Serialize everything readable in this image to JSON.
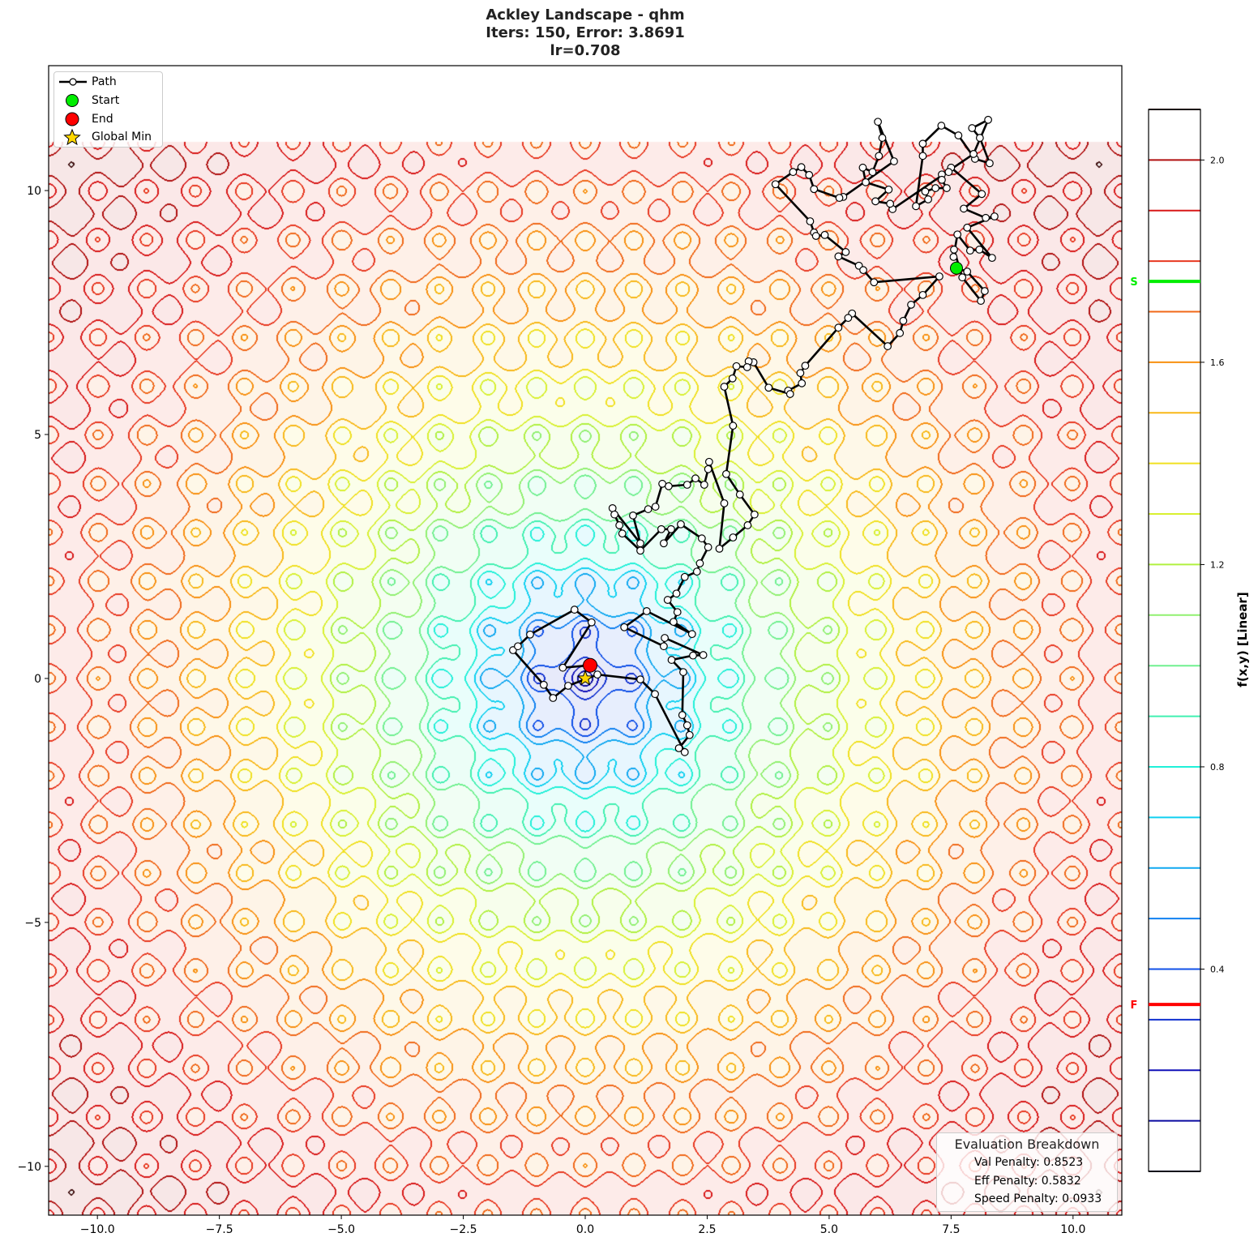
{
  "title": {
    "line1": "Ackley Landscape - qhm",
    "line2": "Iters: 150, Error: 3.8691",
    "line3": "lr=0.708"
  },
  "legend": {
    "path": "Path",
    "start": "Start",
    "end": "End",
    "global_min": "Global Min"
  },
  "evaluation": {
    "title": "Evaluation Breakdown",
    "val_penalty": "Val Penalty: 0.8523",
    "eff_penalty": "Eff Penalty: 0.5832",
    "speed_penalty": "Speed Penalty: 0.0933"
  },
  "colors": {
    "path": "#000000",
    "start": "#00ee00",
    "end": "#ff0000",
    "global_min": "#ffd700",
    "levels": [
      "#101040",
      "#0a0aa0",
      "#1010b8",
      "#1030d0",
      "#1050e8",
      "#1080f0",
      "#10a8f0",
      "#10d0f0",
      "#20f0d8",
      "#40f0b0",
      "#70f090",
      "#90f070",
      "#b0f040",
      "#d8f030",
      "#f0e020",
      "#f8b818",
      "#f89010",
      "#f06818",
      "#e83820",
      "#d81818",
      "#b01010",
      "#401010"
    ]
  },
  "chart_data": {
    "type": "contour",
    "function": "ackley",
    "xlim": [
      -11,
      11
    ],
    "ylim": [
      -11,
      12.56
    ],
    "contour_domain": [
      -11,
      11
    ],
    "xticks": [
      "−10.0",
      "−7.5",
      "−5.0",
      "−2.5",
      "0.0",
      "2.5",
      "5.0",
      "7.5",
      "10.0"
    ],
    "xtick_values": [
      -10,
      -7.5,
      -5,
      -2.5,
      0,
      2.5,
      5,
      7.5,
      10
    ],
    "yticks": [
      "−10",
      "−5",
      "0",
      "5",
      "10"
    ],
    "ytick_values": [
      -10,
      -5,
      0,
      5,
      10
    ],
    "grid": false,
    "legend_placement": "upper-left",
    "start": [
      7.61,
      8.41
    ],
    "end": [
      0.1,
      0.27
    ],
    "global_min": [
      0,
      0
    ],
    "path": [
      [
        7.61,
        8.41
      ],
      [
        7.83,
        8.34
      ],
      [
        8.19,
        7.94
      ],
      [
        8.11,
        7.74
      ],
      [
        7.73,
        8.22
      ],
      [
        7.56,
        8.79
      ],
      [
        7.55,
        8.64
      ],
      [
        7.63,
        9.1
      ],
      [
        7.89,
        8.77
      ],
      [
        8.08,
        8.79
      ],
      [
        8.34,
        8.62
      ],
      [
        7.83,
        9.24
      ],
      [
        8.39,
        9.47
      ],
      [
        8.21,
        9.44
      ],
      [
        7.76,
        9.63
      ],
      [
        8.13,
        9.93
      ],
      [
        7.5,
        10.47
      ],
      [
        7.45,
        10.38
      ],
      [
        7.31,
        10.33
      ],
      [
        7.31,
        10.22
      ],
      [
        7.41,
        10.05
      ],
      [
        7.18,
        10.05
      ],
      [
        6.97,
        9.98
      ],
      [
        7.03,
        9.82
      ],
      [
        6.78,
        9.68
      ],
      [
        6.92,
        10.71
      ],
      [
        6.92,
        10.96
      ],
      [
        7.3,
        11.33
      ],
      [
        7.65,
        11.13
      ],
      [
        7.99,
        10.65
      ],
      [
        8.29,
        10.56
      ],
      [
        8.09,
        11.08
      ],
      [
        7.93,
        11.28
      ],
      [
        8.26,
        11.45
      ],
      [
        7.96,
        10.75
      ],
      [
        6.3,
        9.62
      ],
      [
        6.25,
        9.73
      ],
      [
        5.95,
        9.78
      ],
      [
        6.22,
        10.02
      ],
      [
        5.75,
        10.17
      ],
      [
        5.69,
        10.47
      ],
      [
        5.89,
        10.38
      ],
      [
        6.02,
        10.71
      ],
      [
        6.09,
        11.08
      ],
      [
        6.0,
        11.41
      ],
      [
        6.33,
        10.6
      ],
      [
        5.29,
        9.87
      ],
      [
        5.21,
        9.85
      ],
      [
        4.69,
        10.03
      ],
      [
        4.59,
        10.32
      ],
      [
        4.43,
        10.48
      ],
      [
        4.26,
        10.38
      ],
      [
        3.9,
        10.13
      ],
      [
        4.61,
        9.37
      ],
      [
        4.69,
        9.14
      ],
      [
        4.73,
        9.07
      ],
      [
        4.91,
        9.09
      ],
      [
        5.34,
        8.74
      ],
      [
        5.19,
        8.65
      ],
      [
        5.61,
        8.46
      ],
      [
        5.7,
        8.37
      ],
      [
        5.92,
        8.12
      ],
      [
        7.26,
        8.24
      ],
      [
        6.92,
        7.86
      ],
      [
        6.68,
        7.66
      ],
      [
        6.52,
        7.33
      ],
      [
        6.45,
        7.08
      ],
      [
        6.2,
        6.81
      ],
      [
        5.47,
        7.48
      ],
      [
        5.39,
        7.39
      ],
      [
        5.19,
        7.19
      ],
      [
        4.51,
        6.41
      ],
      [
        4.41,
        6.26
      ],
      [
        4.44,
        6.05
      ],
      [
        4.16,
        5.9
      ],
      [
        4.2,
        5.83
      ],
      [
        3.76,
        5.96
      ],
      [
        3.45,
        6.48
      ],
      [
        3.35,
        6.5
      ],
      [
        3.32,
        6.38
      ],
      [
        3.1,
        6.4
      ],
      [
        3.02,
        6.15
      ],
      [
        2.85,
        5.98
      ],
      [
        3.03,
        5.18
      ],
      [
        2.89,
        4.19
      ],
      [
        3.17,
        3.77
      ],
      [
        3.47,
        3.36
      ],
      [
        3.33,
        3.14
      ],
      [
        3.03,
        2.89
      ],
      [
        2.75,
        2.66
      ],
      [
        2.85,
        3.59
      ],
      [
        2.54,
        4.44
      ],
      [
        2.52,
        4.29
      ],
      [
        2.44,
        3.97
      ],
      [
        2.26,
        4.1
      ],
      [
        2.09,
        3.97
      ],
      [
        1.71,
        3.94
      ],
      [
        1.58,
        3.99
      ],
      [
        1.44,
        3.52
      ],
      [
        1.29,
        3.47
      ],
      [
        0.98,
        3.34
      ],
      [
        1.13,
        2.77
      ],
      [
        0.56,
        3.49
      ],
      [
        0.6,
        3.36
      ],
      [
        0.7,
        3.14
      ],
      [
        0.76,
        2.97
      ],
      [
        1.13,
        2.62
      ],
      [
        1.56,
        3.06
      ],
      [
        1.76,
        3.06
      ],
      [
        1.61,
        2.77
      ],
      [
        1.96,
        3.16
      ],
      [
        2.39,
        2.87
      ],
      [
        2.52,
        2.69
      ],
      [
        2.35,
        2.36
      ],
      [
        2.29,
        2.19
      ],
      [
        2.04,
        2.08
      ],
      [
        1.87,
        1.74
      ],
      [
        1.69,
        1.61
      ],
      [
        1.89,
        1.36
      ],
      [
        1.81,
        1.16
      ],
      [
        2.19,
        0.91
      ],
      [
        1.26,
        1.38
      ],
      [
        0.8,
        1.05
      ],
      [
        1.61,
        0.66
      ],
      [
        1.63,
        0.83
      ],
      [
        2.42,
        0.48
      ],
      [
        2.21,
        0.47
      ],
      [
        1.77,
        0.38
      ],
      [
        2.01,
        0.13
      ],
      [
        1.99,
        -0.75
      ],
      [
        2.09,
        -0.96
      ],
      [
        2.14,
        -1.16
      ],
      [
        1.92,
        -1.43
      ],
      [
        2.04,
        -1.51
      ],
      [
        1.43,
        -0.32
      ],
      [
        1.13,
        -0.02
      ],
      [
        0.25,
        0.08
      ],
      [
        -0.35,
        -0.15
      ],
      [
        -0.66,
        -0.4
      ],
      [
        -0.85,
        -0.13
      ],
      [
        -1.48,
        0.58
      ],
      [
        -1.38,
        0.66
      ],
      [
        -1.13,
        0.9
      ],
      [
        -0.22,
        1.41
      ],
      [
        0.13,
        1.15
      ],
      [
        -0.46,
        0.22
      ],
      [
        0.1,
        0.27
      ]
    ],
    "colorbar": {
      "label": "f(x,y) [Linear]",
      "range": [
        0,
        2.1
      ],
      "levels_step": 0.1,
      "ticks": [
        "0.4",
        "0.8",
        "1.2",
        "1.6",
        "2.0"
      ],
      "tick_values": [
        0.4,
        0.8,
        1.2,
        1.6,
        2.0
      ],
      "start_marker": {
        "label": "S",
        "value": 1.76
      },
      "end_marker": {
        "label": "F",
        "value": 0.33
      }
    }
  }
}
